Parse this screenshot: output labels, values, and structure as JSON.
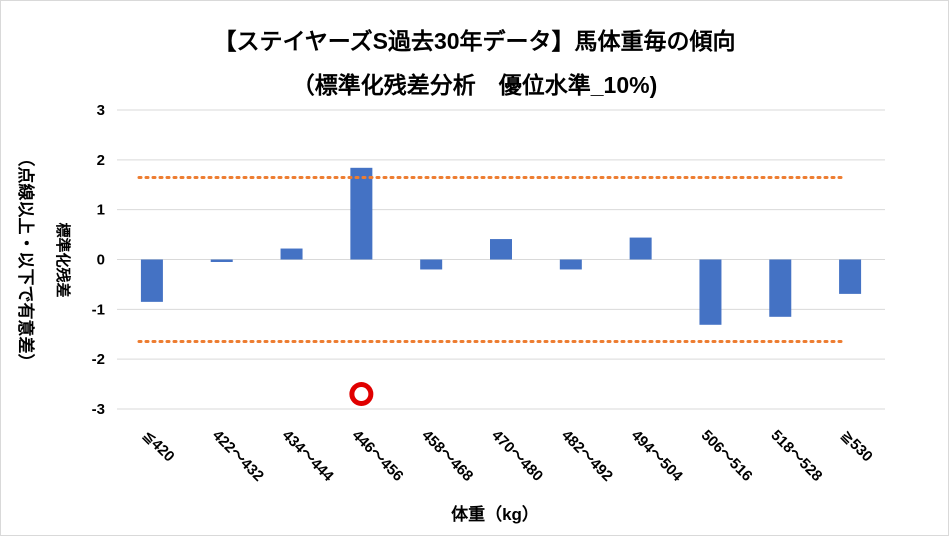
{
  "chart_data": {
    "type": "bar",
    "title": "【ステイヤーズS過去30年データ】馬体重毎の傾向",
    "subtitle": "（標準化残差分析　優位水準_10%)",
    "xlabel": "体重（kg）",
    "ylabel": "標準化残差",
    "ylabel2": "（点線以上・以下で有意差）",
    "ylim": [
      -3,
      3
    ],
    "yticks": [
      "3",
      "2",
      "1",
      "0",
      "-1",
      "-2",
      "-3"
    ],
    "grid": true,
    "categories": [
      "≦420",
      "422～432",
      "434～444",
      "446～456",
      "458～468",
      "470～480",
      "482～492",
      "494～504",
      "506～516",
      "518～528",
      "≧530"
    ],
    "values": [
      -0.85,
      -0.05,
      0.22,
      1.84,
      -0.2,
      0.41,
      -0.2,
      0.44,
      -1.31,
      -1.15,
      -0.69
    ],
    "threshold_lines": [
      1.645,
      -1.645
    ],
    "marker": {
      "category": "446～456",
      "y": -2.7
    },
    "colors": {
      "bar": "#4472c4",
      "threshold": "#ed7d31",
      "grid": "#d9d9d9",
      "marker": "#e00000"
    }
  }
}
